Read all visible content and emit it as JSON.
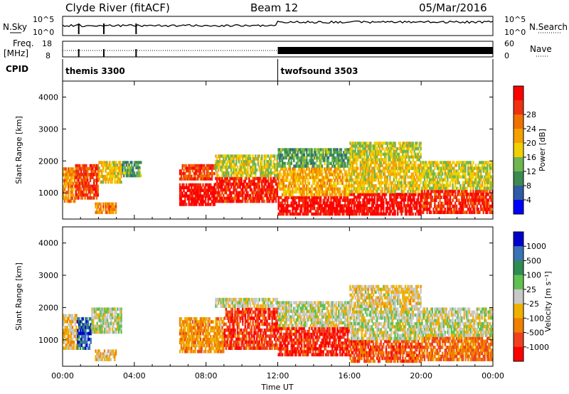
{
  "header": {
    "station": "Clyde River (fitACF)",
    "beam": "Beam 12",
    "date": "05/Mar/2016"
  },
  "top_panels": {
    "nsky_label": "N.Sky",
    "nsky_ticks": [
      "10^5",
      "10^0"
    ],
    "nsearch_label": "N.Search",
    "nsearch_ticks": [
      "10^5",
      "10^0"
    ],
    "freq_label_1": "Freq.",
    "freq_label_2": "[MHz]",
    "freq_ticks": [
      "18",
      "8"
    ],
    "nave_label": "Nave",
    "nave_ticks": [
      "60",
      "0"
    ],
    "cpid_label": "CPID",
    "cpid_modes": [
      {
        "name": "themis 3300",
        "start_hour": 0
      },
      {
        "name": "twofsound 3503",
        "start_hour": 12
      }
    ]
  },
  "colors": {
    "power": [
      "#0000ff",
      "#2f5aa5",
      "#3c8a50",
      "#6fb650",
      "#f0d000",
      "#f5a000",
      "#f07000",
      "#f03010",
      "#ff0000"
    ],
    "velocity": [
      "#0000cc",
      "#3a73b5",
      "#2e8c50",
      "#60c050",
      "#c8c8c8",
      "#f0b000",
      "#f08000",
      "#f04020",
      "#ff0000"
    ]
  },
  "chart_data": [
    {
      "type": "heatmap",
      "title": "Power",
      "x": [
        0,
        2,
        4,
        6,
        8,
        10,
        12,
        14,
        16,
        18,
        20,
        22,
        24
      ],
      "xticks": [
        "00:00",
        "04:00",
        "08:00",
        "12:00",
        "16:00",
        "20:00",
        "00:00"
      ],
      "xlabel": "Time UT",
      "ylabel": "Slant Range [km]",
      "ylim": [
        180,
        4500
      ],
      "yticks": [
        "1000",
        "2000",
        "3000",
        "4000"
      ],
      "colorbar": {
        "label": "Power [dB]",
        "ticks": [
          "4",
          "8",
          "12",
          "16",
          "20",
          "24",
          "28"
        ],
        "range": [
          0,
          30
        ]
      },
      "bands": [
        {
          "x0": 0.0,
          "x1": 0.7,
          "y0": 700,
          "y1": 1800,
          "v": 20
        },
        {
          "x0": 0.7,
          "x1": 2.0,
          "y0": 800,
          "y1": 1900,
          "v": 24
        },
        {
          "x0": 2.0,
          "x1": 3.3,
          "y0": 1300,
          "y1": 2000,
          "v": 16
        },
        {
          "x0": 1.8,
          "x1": 3.0,
          "y0": 350,
          "y1": 700,
          "v": 20
        },
        {
          "x0": 3.3,
          "x1": 4.4,
          "y0": 1500,
          "y1": 2000,
          "v": 10
        },
        {
          "x0": 6.5,
          "x1": 8.5,
          "y0": 600,
          "y1": 1300,
          "v": 28
        },
        {
          "x0": 6.5,
          "x1": 8.5,
          "y0": 1400,
          "y1": 1900,
          "v": 24
        },
        {
          "x0": 8.5,
          "x1": 12.0,
          "y0": 700,
          "y1": 1500,
          "v": 26
        },
        {
          "x0": 8.5,
          "x1": 12.0,
          "y0": 1500,
          "y1": 2200,
          "v": 14
        },
        {
          "x0": 12.0,
          "x1": 16.0,
          "y0": 300,
          "y1": 900,
          "v": 28
        },
        {
          "x0": 12.0,
          "x1": 16.0,
          "y0": 900,
          "y1": 1800,
          "v": 18
        },
        {
          "x0": 12.0,
          "x1": 16.0,
          "y0": 1800,
          "y1": 2400,
          "v": 10
        },
        {
          "x0": 16.0,
          "x1": 20.0,
          "y0": 300,
          "y1": 1000,
          "v": 28
        },
        {
          "x0": 16.0,
          "x1": 20.0,
          "y0": 1000,
          "y1": 2000,
          "v": 16
        },
        {
          "x0": 16.0,
          "x1": 20.0,
          "y0": 2000,
          "y1": 2600,
          "v": 14
        },
        {
          "x0": 20.0,
          "x1": 24.0,
          "y0": 350,
          "y1": 1100,
          "v": 26
        },
        {
          "x0": 20.0,
          "x1": 24.0,
          "y0": 1100,
          "y1": 2000,
          "v": 14
        }
      ]
    },
    {
      "type": "heatmap",
      "title": "Velocity",
      "x": [
        0,
        2,
        4,
        6,
        8,
        10,
        12,
        14,
        16,
        18,
        20,
        22,
        24
      ],
      "xticks": [
        "00:00",
        "04:00",
        "08:00",
        "12:00",
        "16:00",
        "20:00",
        "00:00"
      ],
      "xlabel": "Time UT",
      "ylabel": "Slant Range [km]",
      "ylim": [
        180,
        4500
      ],
      "yticks": [
        "1000",
        "2000",
        "3000",
        "4000"
      ],
      "colorbar": {
        "label": "Velocity [m s⁻¹]",
        "ticks": [
          "1000",
          "500",
          "100",
          "25",
          "-25",
          "-100",
          "-500",
          "-1000"
        ],
        "range": [
          -1000,
          1000
        ]
      },
      "bands": [
        {
          "x0": 0.0,
          "x1": 0.8,
          "y0": 700,
          "y1": 1800,
          "v": -150
        },
        {
          "x0": 0.8,
          "x1": 1.6,
          "y0": 700,
          "y1": 1700,
          "v": 700
        },
        {
          "x0": 1.6,
          "x1": 3.3,
          "y0": 1200,
          "y1": 2000,
          "v": 60
        },
        {
          "x0": 1.8,
          "x1": 3.0,
          "y0": 350,
          "y1": 700,
          "v": -200
        },
        {
          "x0": 6.5,
          "x1": 9.0,
          "y0": 600,
          "y1": 1700,
          "v": -350
        },
        {
          "x0": 9.0,
          "x1": 12.0,
          "y0": 700,
          "y1": 2000,
          "v": -700
        },
        {
          "x0": 8.5,
          "x1": 12.0,
          "y0": 2000,
          "y1": 2300,
          "v": 0
        },
        {
          "x0": 12.0,
          "x1": 16.0,
          "y0": 500,
          "y1": 1400,
          "v": -750
        },
        {
          "x0": 12.0,
          "x1": 16.0,
          "y0": 1400,
          "y1": 2200,
          "v": 0
        },
        {
          "x0": 16.0,
          "x1": 20.0,
          "y0": 300,
          "y1": 1000,
          "v": -600
        },
        {
          "x0": 16.0,
          "x1": 20.0,
          "y0": 1000,
          "y1": 2000,
          "v": 0
        },
        {
          "x0": 16.0,
          "x1": 20.0,
          "y0": 2000,
          "y1": 2700,
          "v": -120
        },
        {
          "x0": 20.0,
          "x1": 24.0,
          "y0": 350,
          "y1": 1100,
          "v": -500
        },
        {
          "x0": 20.0,
          "x1": 24.0,
          "y0": 1100,
          "y1": 2000,
          "v": 0
        }
      ]
    }
  ]
}
